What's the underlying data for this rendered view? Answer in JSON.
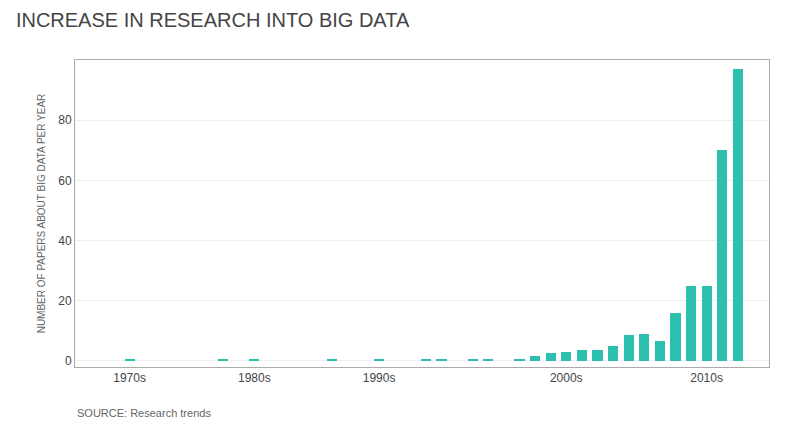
{
  "chart_data": {
    "type": "bar",
    "title": "INCREASE IN RESEARCH INTO BIG DATA",
    "ylabel": "NUMBER OF PAPERS ABOUT BIG DATA PER YEAR",
    "annotations": [
      "SOURCE: Research trends"
    ],
    "x": [
      1974,
      1980,
      1982,
      1987,
      1990,
      1993,
      1994,
      1996,
      1997,
      1999,
      2000,
      2001,
      2002,
      2003,
      2004,
      2005,
      2006,
      2007,
      2008,
      2009,
      2010,
      2011,
      2012,
      2013
    ],
    "values": [
      0.8,
      0.8,
      0.8,
      0.8,
      0.8,
      0.8,
      0.8,
      0.8,
      0.8,
      0.8,
      1.5,
      2.5,
      3,
      3.5,
      3.5,
      5,
      8.5,
      9,
      6.5,
      16,
      25,
      25,
      70,
      97
    ],
    "color": "#2DBFB0",
    "xlim": [
      1970.5,
      2015.0
    ],
    "xticks": [
      {
        "value": 1974,
        "label": "1970s"
      },
      {
        "value": 1982,
        "label": "1980s"
      },
      {
        "value": 1990,
        "label": "1990s"
      },
      {
        "value": 2002,
        "label": "2000s"
      },
      {
        "value": 2011,
        "label": "2010s"
      }
    ],
    "ylim": [
      -2,
      100
    ],
    "yticks": [
      0,
      20,
      40,
      60,
      80
    ],
    "grid": true
  }
}
